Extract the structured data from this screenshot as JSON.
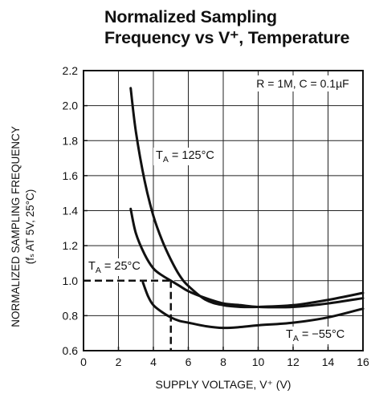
{
  "chart_data": {
    "type": "line",
    "title_lines": [
      "Normalized Sampling",
      "Frequency vs V⁺, Temperature"
    ],
    "xlabel": "SUPPLY VOLTAGE, V⁺ (V)",
    "ylabel_lines": [
      "NORMALIZED SAMPLING FREQUENCY",
      "(fₛ AT 5V, 25°C)"
    ],
    "xlim": [
      0,
      16
    ],
    "ylim": [
      0.6,
      2.2
    ],
    "xticks": [
      0,
      2,
      4,
      6,
      8,
      10,
      12,
      14,
      16
    ],
    "yticks": [
      0.6,
      0.8,
      1.0,
      1.2,
      1.4,
      1.6,
      1.8,
      2.0,
      2.2
    ],
    "xtick_labels": [
      "0",
      "2",
      "4",
      "6",
      "8",
      "10",
      "12",
      "14",
      "16"
    ],
    "ytick_labels": [
      "0.6",
      "0.8",
      "1.0",
      "1.2",
      "1.4",
      "1.6",
      "1.8",
      "2.0",
      "2.2"
    ],
    "grid": true,
    "condition_note": "R = 1M, C = 0.1µF",
    "series": [
      {
        "name": "Tₐ = 125°C",
        "label_sub": "A",
        "label_text": "= 125°C",
        "x": [
          2.7,
          3.0,
          3.5,
          4.0,
          4.5,
          5.0,
          5.5,
          6.0,
          7.0,
          8.0,
          9.0,
          10.0,
          12.0,
          14.0,
          16.0
        ],
        "y": [
          2.1,
          1.85,
          1.57,
          1.37,
          1.23,
          1.12,
          1.03,
          0.97,
          0.89,
          0.86,
          0.85,
          0.85,
          0.86,
          0.89,
          0.93
        ]
      },
      {
        "name": "Tₐ = 25°C",
        "label_sub": "A",
        "label_text": "= 25°C",
        "x": [
          2.7,
          3.0,
          3.5,
          4.0,
          4.5,
          5.0,
          5.5,
          6.0,
          7.0,
          8.0,
          9.0,
          10.0,
          12.0,
          14.0,
          16.0
        ],
        "y": [
          1.41,
          1.27,
          1.15,
          1.07,
          1.03,
          1.0,
          0.97,
          0.94,
          0.9,
          0.87,
          0.86,
          0.85,
          0.85,
          0.87,
          0.9
        ]
      },
      {
        "name": "Tₐ = −55°C",
        "label_sub": "A",
        "label_text": "= −55°C",
        "x": [
          3.4,
          3.7,
          4.0,
          4.5,
          5.0,
          5.5,
          6.0,
          7.0,
          8.0,
          9.0,
          10.0,
          12.0,
          14.0,
          16.0
        ],
        "y": [
          0.99,
          0.91,
          0.86,
          0.82,
          0.79,
          0.77,
          0.76,
          0.74,
          0.73,
          0.735,
          0.745,
          0.76,
          0.79,
          0.84
        ]
      }
    ],
    "reference_point": {
      "x": 5,
      "y": 1.0,
      "style": "dashed"
    }
  }
}
